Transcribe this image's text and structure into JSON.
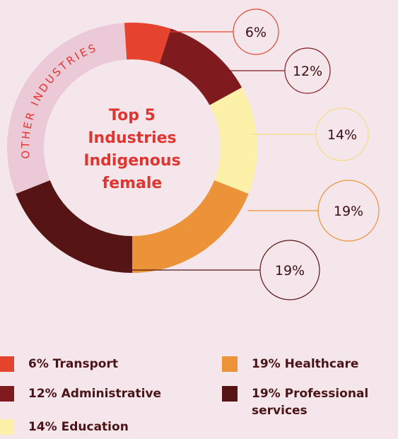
{
  "chart_data": {
    "type": "donut",
    "title": "Top 5 Industries Indigenous female",
    "categories": [
      "Transport",
      "Administrative",
      "Education",
      "Healthcare",
      "Professional services",
      "OTHER INDUSTRIES"
    ],
    "values": [
      6,
      12,
      14,
      19,
      19,
      30
    ],
    "value_labels": [
      "6%",
      "12%",
      "14%",
      "19%",
      "19%",
      null
    ],
    "colors": [
      "#e5432e",
      "#7f1a1e",
      "#fdf0a8",
      "#ec9238",
      "#561414",
      "#ecc9d6"
    ]
  }
}
